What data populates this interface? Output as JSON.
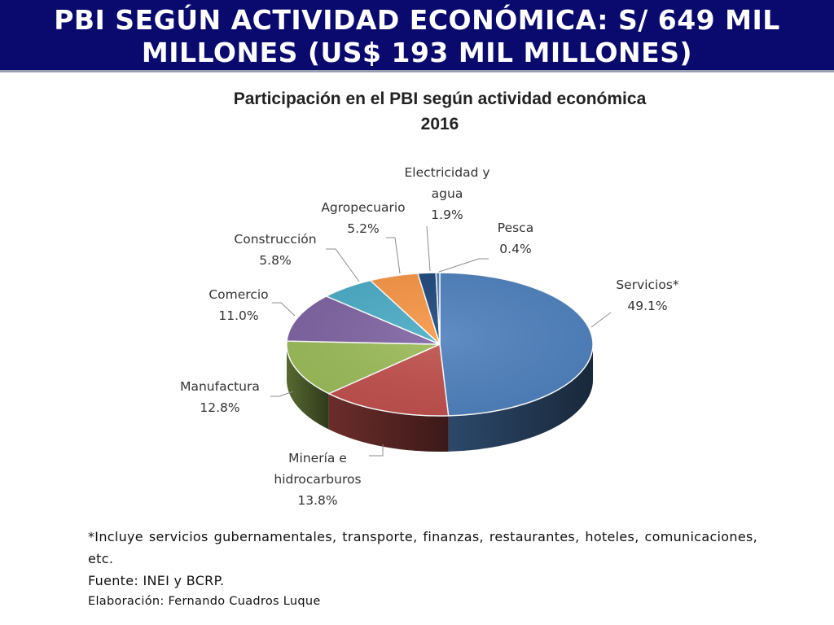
{
  "header": {
    "title_line1": "PBI SEGÚN ACTIVIDAD ECONÓMICA: S/ 649 MIL",
    "title_line2": "MILLONES (US$ 193 MIL MILLONES)"
  },
  "chart_data": {
    "type": "pie",
    "title": "Participación en el PBI según actividad económica",
    "subtitle": "2016",
    "slices": [
      {
        "label": "Servicios*",
        "label_lines": [
          "Servicios*"
        ],
        "value": 49.1,
        "display": "49.1%",
        "color": "#4f81bd"
      },
      {
        "label": "Minería e hidrocarburos",
        "label_lines": [
          "Minería e",
          "hidrocarburos"
        ],
        "value": 13.8,
        "display": "13.8%",
        "color": "#c0504d"
      },
      {
        "label": "Manufactura",
        "label_lines": [
          "Manufactura"
        ],
        "value": 12.8,
        "display": "12.8%",
        "color": "#9bbb59"
      },
      {
        "label": "Comercio",
        "label_lines": [
          "Comercio"
        ],
        "value": 11.0,
        "display": "11.0%",
        "color": "#8064a2"
      },
      {
        "label": "Construcción",
        "label_lines": [
          "Construcción"
        ],
        "value": 5.8,
        "display": "5.8%",
        "color": "#4bacc6"
      },
      {
        "label": "Agropecuario",
        "label_lines": [
          "Agropecuario"
        ],
        "value": 5.2,
        "display": "5.2%",
        "color": "#f79646"
      },
      {
        "label": "Electricidad y agua",
        "label_lines": [
          "Electricidad y",
          "agua"
        ],
        "value": 1.9,
        "display": "1.9%",
        "color": "#1f497d"
      },
      {
        "label": "Pesca",
        "label_lines": [
          "Pesca"
        ],
        "value": 0.4,
        "display": "0.4%",
        "color": "#4f81bd"
      }
    ]
  },
  "notes": {
    "footnote": "*Incluye servicios gubernamentales, transporte, finanzas, restaurantes, hoteles, comunicaciones, etc.",
    "source": "Fuente: INEI y BCRP.",
    "credit": "Elaboración: Fernando Cuadros Luque"
  }
}
